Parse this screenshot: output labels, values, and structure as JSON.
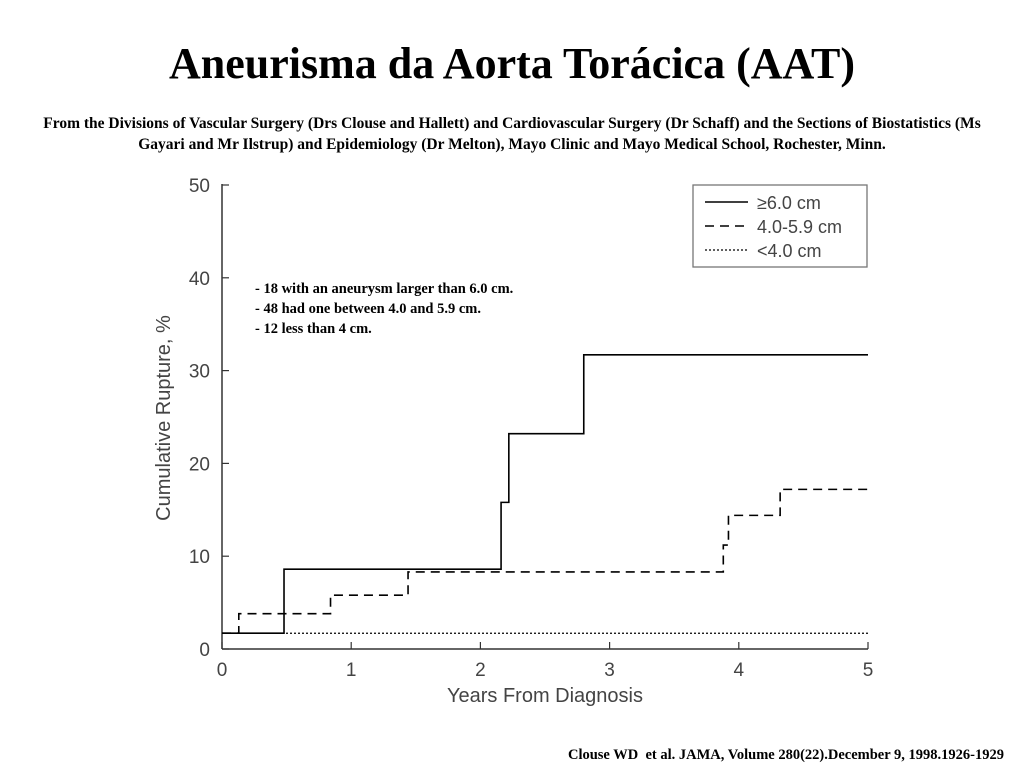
{
  "slide": {
    "title": "Aneurisma da Aorta Torácica (AAT)",
    "subtitle": "From the Divisions of Vascular Surgery (Drs Clouse and Hallett) and Cardiovascular Surgery (Dr Schaff) and the Sections of Biostatistics (Ms Gayari and Mr Ilstrup) and Epidemiology (Dr Melton), Mayo Clinic and Mayo Medical School, Rochester, Minn.",
    "citation": "Clouse WD  et al. JAMA, Volume 280(22).December 9, 1998.1926-1929"
  },
  "chart_data": {
    "type": "line",
    "xlabel": "Years From Diagnosis",
    "ylabel": "Cumulative Rupture, %",
    "xlim": [
      0,
      5
    ],
    "ylim": [
      0,
      50
    ],
    "x_ticks": [
      0,
      1,
      2,
      3,
      4,
      5
    ],
    "y_ticks": [
      0,
      10,
      20,
      30,
      40,
      50
    ],
    "grid": false,
    "legend_position": "top-right",
    "annotations": [
      "- 18 with an aneurysm larger than 6.0 cm.",
      "- 48 had one between 4.0 and 5.9 cm.",
      "- 12 less than 4 cm."
    ],
    "series": [
      {
        "name": "≥6.0 cm",
        "style": "solid",
        "color": "#000000",
        "x": [
          0,
          0.48,
          2.16,
          2.22,
          2.8,
          5.0
        ],
        "y": [
          1.7,
          8.6,
          15.8,
          23.2,
          31.7,
          31.7
        ]
      },
      {
        "name": "4.0-5.9 cm",
        "style": "dashed",
        "color": "#000000",
        "x": [
          0,
          0.13,
          0.84,
          1.44,
          3.88,
          3.92,
          4.32,
          5.0
        ],
        "y": [
          1.7,
          3.8,
          5.8,
          8.3,
          11.2,
          14.4,
          17.2,
          17.2
        ]
      },
      {
        "name": "<4.0 cm",
        "style": "dotted",
        "color": "#000000",
        "x": [
          0,
          5.0
        ],
        "y": [
          1.7,
          1.7
        ]
      }
    ]
  }
}
